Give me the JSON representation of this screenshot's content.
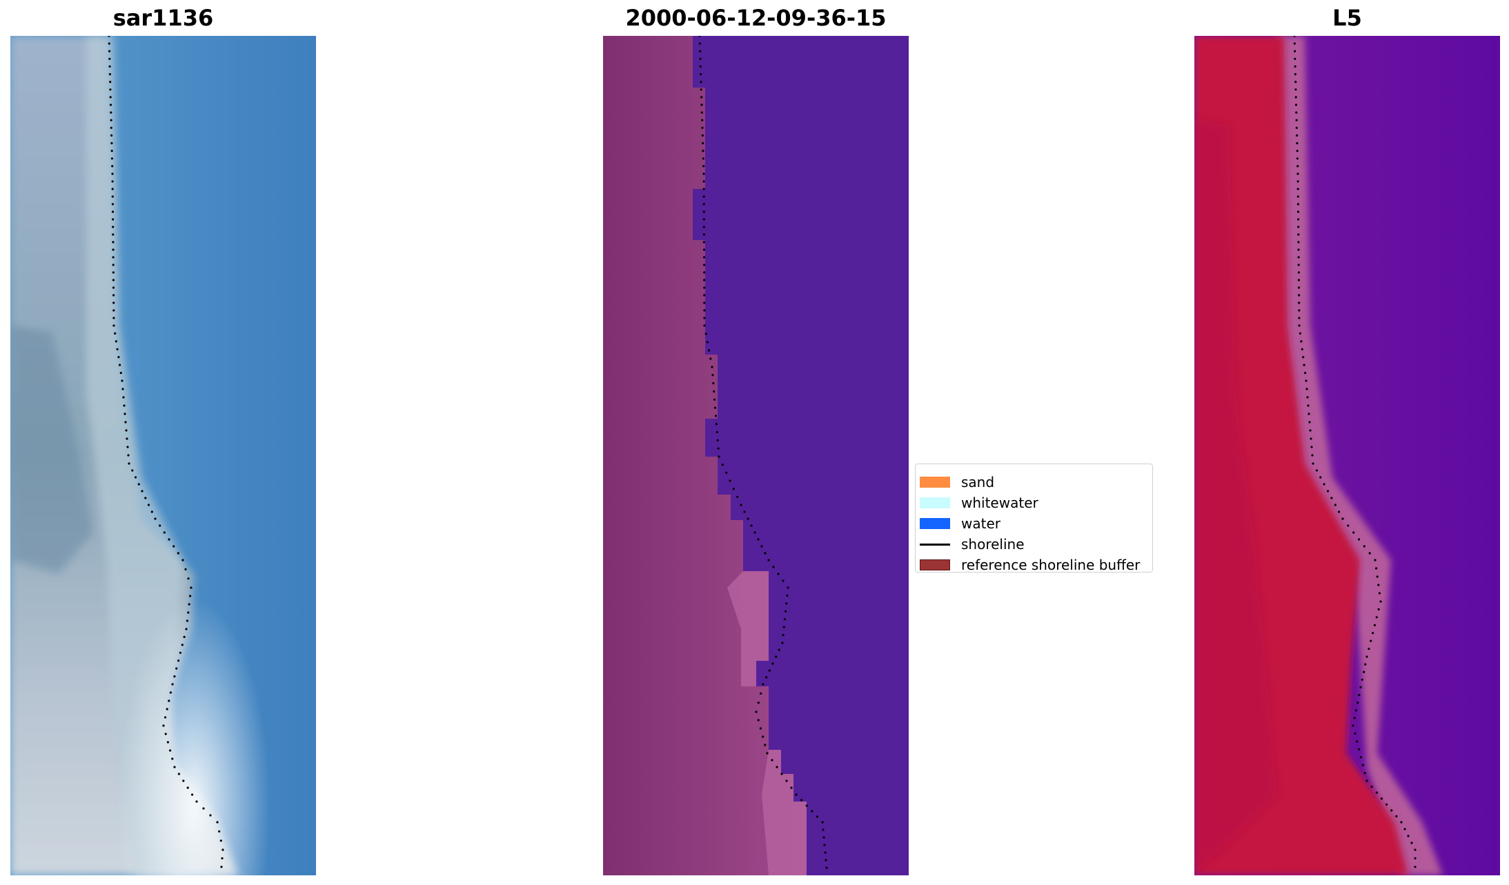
{
  "panels": [
    {
      "title": "sar1136"
    },
    {
      "title": "2000-06-12-09-36-15"
    },
    {
      "title": "L5"
    }
  ],
  "legend": {
    "items": [
      {
        "label": "sand",
        "color": "#ff8c40",
        "kind": "patch"
      },
      {
        "label": "whitewater",
        "color": "#c8fcff",
        "kind": "patch"
      },
      {
        "label": "water",
        "color": "#1464ff",
        "kind": "patch"
      },
      {
        "label": "shoreline",
        "color": "#000000",
        "kind": "line"
      },
      {
        "label": "reference shoreline buffer",
        "color": "#9b3434",
        "kind": "patch"
      }
    ]
  },
  "colors": {
    "rgb_water": "#4a8fc9",
    "rgb_beach": "#aebfcc",
    "class_land": "#8e3f7c",
    "class_water": "#54219a",
    "index_land": "#c4123f",
    "index_water": "#6a0fa0",
    "shoreline": "#000000"
  }
}
